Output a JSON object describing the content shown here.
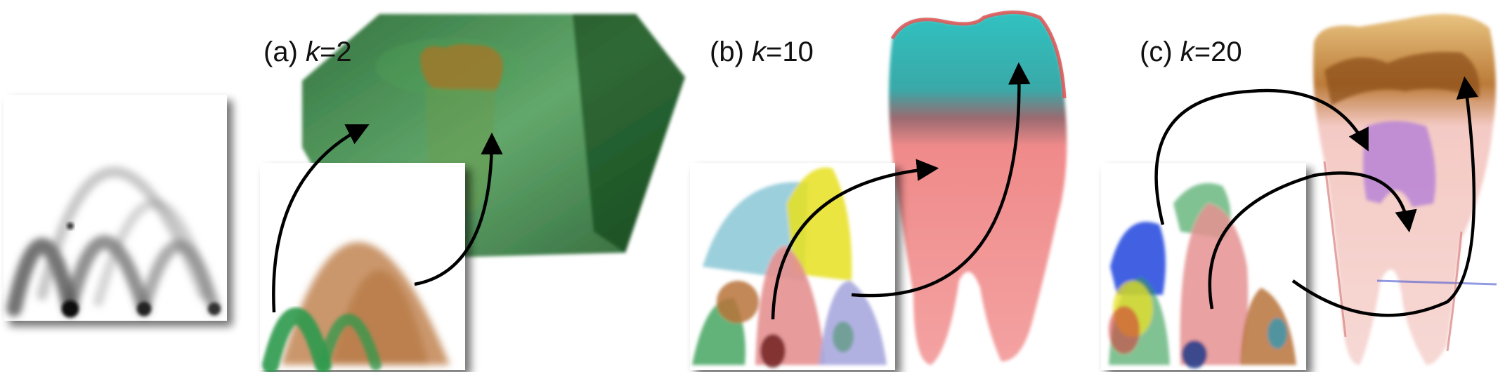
{
  "figure": {
    "panels": [
      {
        "id": "a",
        "prefix": "(a) ",
        "var": "k",
        "suffix": "=2"
      },
      {
        "id": "b",
        "prefix": "(b) ",
        "var": "k",
        "suffix": "=10"
      },
      {
        "id": "c",
        "prefix": "(c) ",
        "var": "k",
        "suffix": "=20"
      }
    ],
    "colors": {
      "background": "#ffffff",
      "arrow": "#000000",
      "histogram_gray": "#555555",
      "cluster_green": "#2e9a4c",
      "cluster_brown": "#b8733a",
      "cluster_teal": "#4aa8c0",
      "cluster_yellow": "#e8e020",
      "cluster_pink": "#e59090",
      "cluster_lavender": "#a9a8de",
      "cluster_blue": "#2244dd",
      "tooth_cyan": "#2bb8b8",
      "tooth_pink": "#f08a8a",
      "tooth_gold": "#c0803a",
      "tooth_purple": "#b07ad8",
      "volume_green": "#1f7a2a"
    },
    "icons": [
      "grayscale-histogram",
      "clustered-histogram",
      "volume-render-tooth",
      "transfer-arrow"
    ]
  }
}
